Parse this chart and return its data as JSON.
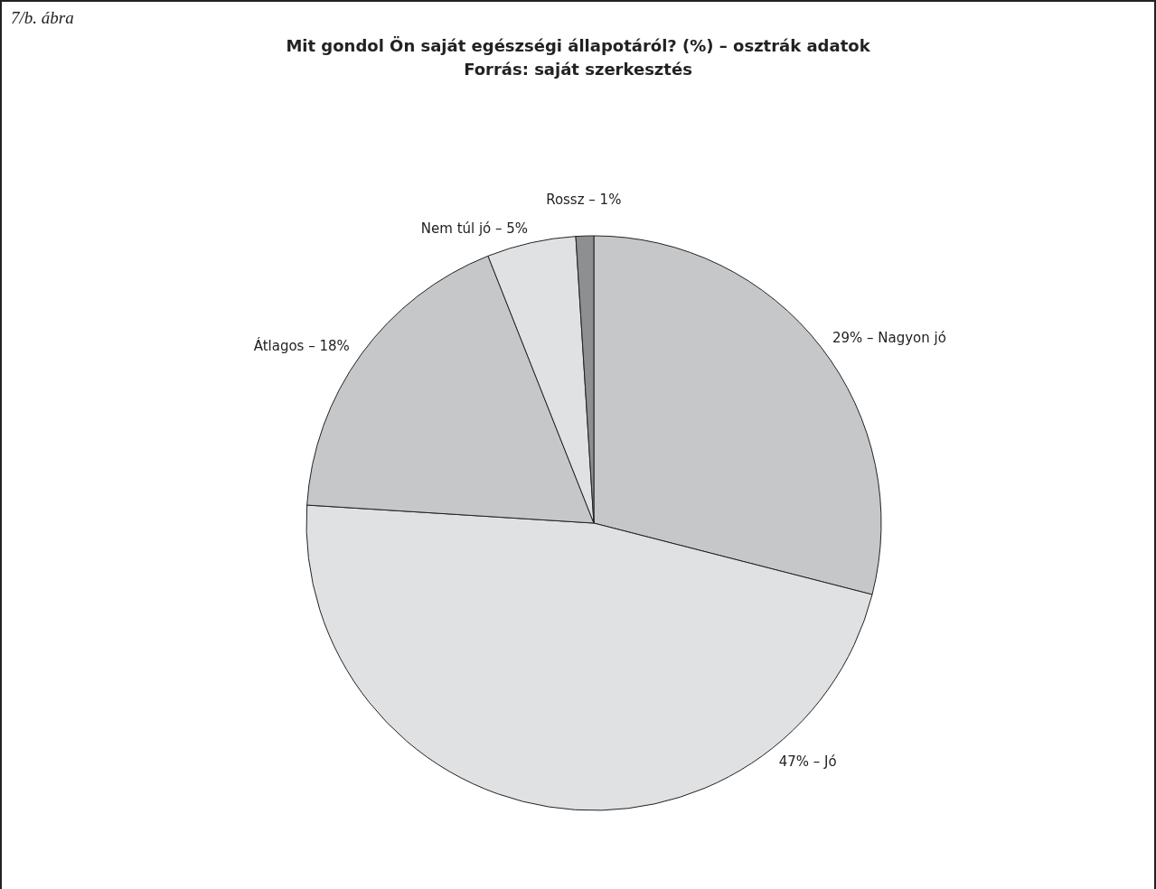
{
  "chart_data": {
    "type": "pie",
    "title": "Mit gondol Ön saját egészségi állapotáról? (%) – osztrák adatok",
    "subtitle": "Forrás: saját szerkesztés",
    "annotations": [
      "7/b. ábra"
    ],
    "categories": [
      "29% – Nagyon jó",
      "47% – Jó",
      "Átlagos – 18%",
      "Nem túl jó – 5%",
      "Rossz – 1%"
    ],
    "values": [
      29,
      47,
      18,
      5,
      1
    ],
    "colors": [
      "#c6c7c9",
      "#e0e1e3",
      "#c6c7c9",
      "#e0e1e3",
      "#8e8f91"
    ],
    "legend": false
  }
}
